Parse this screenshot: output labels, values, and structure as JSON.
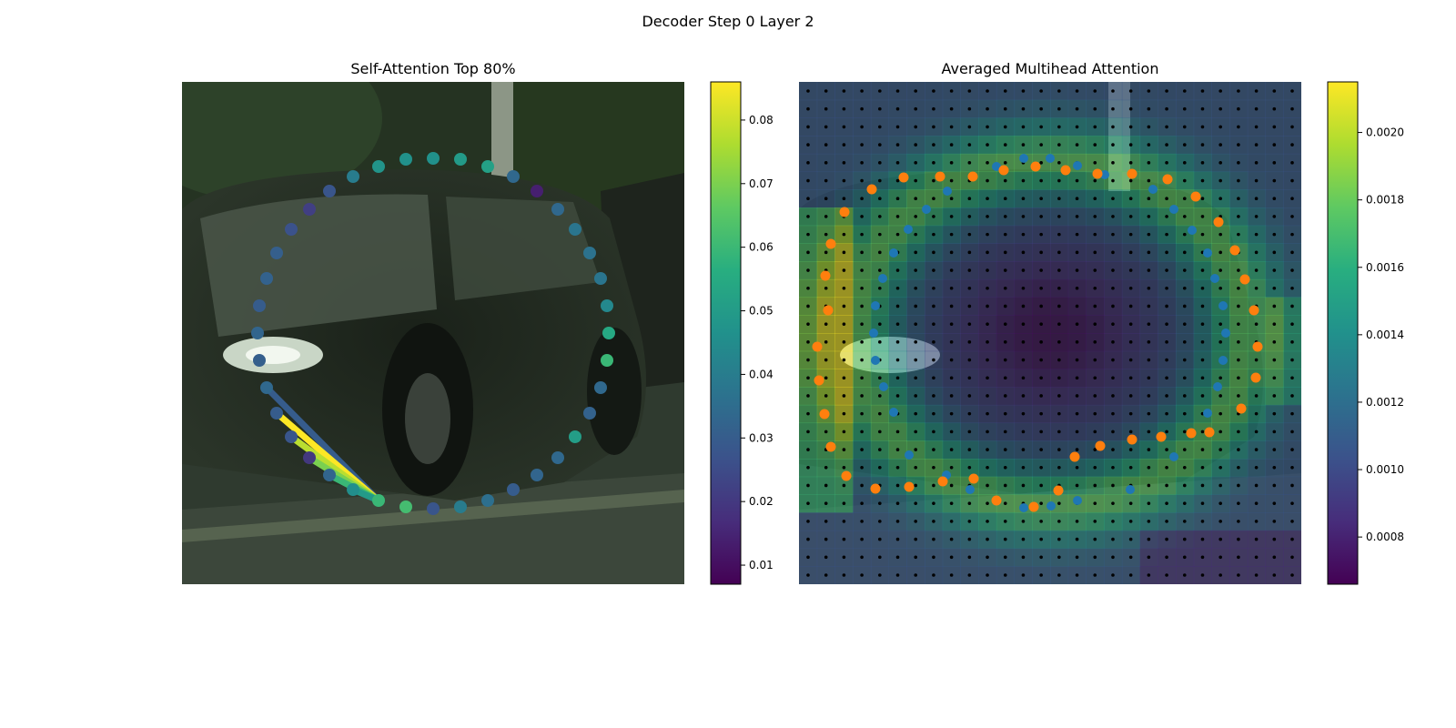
{
  "figure": {
    "suptitle": "Decoder Step 0 Layer 2"
  },
  "chart_data": [
    {
      "type": "scatter",
      "title": "Self-Attention Top 80%",
      "background": "photo of a dark car on a street",
      "colormap": "viridis",
      "colorbar": {
        "min": 0.007,
        "max": 0.086,
        "ticks": [
          0.01,
          0.02,
          0.03,
          0.04,
          0.05,
          0.06,
          0.07,
          0.08
        ]
      },
      "x_range": [
        0,
        552
      ],
      "y_range": [
        0,
        552
      ],
      "points": [
        {
          "x": 276,
          "y": 84,
          "v": 0.047
        },
        {
          "x": 306,
          "y": 85,
          "v": 0.05
        },
        {
          "x": 336,
          "y": 93,
          "v": 0.052
        },
        {
          "x": 364,
          "y": 104,
          "v": 0.034
        },
        {
          "x": 390,
          "y": 120,
          "v": 0.014
        },
        {
          "x": 413,
          "y": 140,
          "v": 0.034
        },
        {
          "x": 432,
          "y": 162,
          "v": 0.038
        },
        {
          "x": 448,
          "y": 188,
          "v": 0.037
        },
        {
          "x": 460,
          "y": 216,
          "v": 0.038
        },
        {
          "x": 467,
          "y": 246,
          "v": 0.044
        },
        {
          "x": 469,
          "y": 276,
          "v": 0.055
        },
        {
          "x": 467,
          "y": 306,
          "v": 0.06
        },
        {
          "x": 460,
          "y": 336,
          "v": 0.034
        },
        {
          "x": 448,
          "y": 364,
          "v": 0.032
        },
        {
          "x": 432,
          "y": 390,
          "v": 0.051
        },
        {
          "x": 413,
          "y": 413,
          "v": 0.034
        },
        {
          "x": 390,
          "y": 432,
          "v": 0.033
        },
        {
          "x": 364,
          "y": 448,
          "v": 0.03
        },
        {
          "x": 336,
          "y": 460,
          "v": 0.036
        },
        {
          "x": 306,
          "y": 467,
          "v": 0.04
        },
        {
          "x": 276,
          "y": 469,
          "v": 0.028
        },
        {
          "x": 246,
          "y": 467,
          "v": 0.062
        },
        {
          "x": 216,
          "y": 460,
          "v": 0.06
        },
        {
          "x": 188,
          "y": 448,
          "v": 0.046
        },
        {
          "x": 162,
          "y": 432,
          "v": 0.033
        },
        {
          "x": 140,
          "y": 413,
          "v": 0.02
        },
        {
          "x": 120,
          "y": 390,
          "v": 0.028
        },
        {
          "x": 104,
          "y": 364,
          "v": 0.03
        },
        {
          "x": 93,
          "y": 336,
          "v": 0.034
        },
        {
          "x": 85,
          "y": 306,
          "v": 0.031
        },
        {
          "x": 83,
          "y": 276,
          "v": 0.033
        },
        {
          "x": 85,
          "y": 246,
          "v": 0.03
        },
        {
          "x": 93,
          "y": 216,
          "v": 0.032
        },
        {
          "x": 104,
          "y": 188,
          "v": 0.031
        },
        {
          "x": 120,
          "y": 162,
          "v": 0.027
        },
        {
          "x": 140,
          "y": 140,
          "v": 0.022
        },
        {
          "x": 162,
          "y": 120,
          "v": 0.028
        },
        {
          "x": 188,
          "y": 104,
          "v": 0.04
        },
        {
          "x": 216,
          "y": 93,
          "v": 0.048
        },
        {
          "x": 246,
          "y": 85,
          "v": 0.047
        }
      ],
      "attention_lines": [
        {
          "from": {
            "x": 216,
            "y": 460
          },
          "to": {
            "x": 93,
            "y": 336
          },
          "v": 0.03
        },
        {
          "from": {
            "x": 216,
            "y": 460
          },
          "to": {
            "x": 104,
            "y": 364
          },
          "v": 0.086
        },
        {
          "from": {
            "x": 216,
            "y": 460
          },
          "to": {
            "x": 120,
            "y": 390
          },
          "v": 0.078
        },
        {
          "from": {
            "x": 216,
            "y": 460
          },
          "to": {
            "x": 140,
            "y": 413
          },
          "v": 0.07
        },
        {
          "from": {
            "x": 216,
            "y": 460
          },
          "to": {
            "x": 162,
            "y": 432
          },
          "v": 0.06
        },
        {
          "from": {
            "x": 216,
            "y": 460
          },
          "to": {
            "x": 188,
            "y": 448
          },
          "v": 0.05
        }
      ]
    },
    {
      "type": "heatmap",
      "title": "Averaged Multihead Attention",
      "background": "photo of a dark car on a street",
      "colormap": "viridis",
      "colorbar": {
        "min": 0.00066,
        "max": 0.00215,
        "ticks": [
          0.0008,
          0.001,
          0.0012,
          0.0014,
          0.0016,
          0.0018,
          0.002
        ]
      },
      "grid": [
        28,
        28
      ],
      "blue_points": [
        {
          "x": 217,
          "y": 93
        },
        {
          "x": 247,
          "y": 84
        },
        {
          "x": 276,
          "y": 84
        },
        {
          "x": 306,
          "y": 92
        },
        {
          "x": 336,
          "y": 102
        },
        {
          "x": 389,
          "y": 118
        },
        {
          "x": 412,
          "y": 140
        },
        {
          "x": 432,
          "y": 163
        },
        {
          "x": 449,
          "y": 188
        },
        {
          "x": 457,
          "y": 216
        },
        {
          "x": 466,
          "y": 246
        },
        {
          "x": 469,
          "y": 276
        },
        {
          "x": 466,
          "y": 306
        },
        {
          "x": 460,
          "y": 335
        },
        {
          "x": 449,
          "y": 364
        },
        {
          "x": 412,
          "y": 412
        },
        {
          "x": 364,
          "y": 448
        },
        {
          "x": 306,
          "y": 460
        },
        {
          "x": 277,
          "y": 466
        },
        {
          "x": 247,
          "y": 468
        },
        {
          "x": 188,
          "y": 448
        },
        {
          "x": 162,
          "y": 432
        },
        {
          "x": 121,
          "y": 410
        },
        {
          "x": 104,
          "y": 363
        },
        {
          "x": 93,
          "y": 335
        },
        {
          "x": 84,
          "y": 306
        },
        {
          "x": 82,
          "y": 276
        },
        {
          "x": 84,
          "y": 246
        },
        {
          "x": 92,
          "y": 216
        },
        {
          "x": 104,
          "y": 188
        },
        {
          "x": 120,
          "y": 162
        },
        {
          "x": 140,
          "y": 140
        },
        {
          "x": 163,
          "y": 120
        }
      ],
      "orange_points": [
        {
          "x": 80,
          "y": 118
        },
        {
          "x": 50,
          "y": 143
        },
        {
          "x": 35,
          "y": 178
        },
        {
          "x": 29,
          "y": 213
        },
        {
          "x": 32,
          "y": 251
        },
        {
          "x": 20,
          "y": 291
        },
        {
          "x": 22,
          "y": 328
        },
        {
          "x": 28,
          "y": 365
        },
        {
          "x": 35,
          "y": 401
        },
        {
          "x": 52,
          "y": 433
        },
        {
          "x": 84,
          "y": 447
        },
        {
          "x": 121,
          "y": 445
        },
        {
          "x": 158,
          "y": 439
        },
        {
          "x": 192,
          "y": 436
        },
        {
          "x": 217,
          "y": 460
        },
        {
          "x": 258,
          "y": 467
        },
        {
          "x": 285,
          "y": 449
        },
        {
          "x": 303,
          "y": 412
        },
        {
          "x": 331,
          "y": 400
        },
        {
          "x": 366,
          "y": 393
        },
        {
          "x": 398,
          "y": 390
        },
        {
          "x": 431,
          "y": 386
        },
        {
          "x": 451,
          "y": 385
        },
        {
          "x": 486,
          "y": 359
        },
        {
          "x": 502,
          "y": 325
        },
        {
          "x": 504,
          "y": 291
        },
        {
          "x": 500,
          "y": 251
        },
        {
          "x": 490,
          "y": 217
        },
        {
          "x": 479,
          "y": 185
        },
        {
          "x": 461,
          "y": 154
        },
        {
          "x": 436,
          "y": 126
        },
        {
          "x": 405,
          "y": 107
        },
        {
          "x": 366,
          "y": 101
        },
        {
          "x": 328,
          "y": 101
        },
        {
          "x": 293,
          "y": 97
        },
        {
          "x": 260,
          "y": 93
        },
        {
          "x": 225,
          "y": 97
        },
        {
          "x": 191,
          "y": 104
        },
        {
          "x": 155,
          "y": 104
        },
        {
          "x": 115,
          "y": 105
        }
      ]
    }
  ]
}
